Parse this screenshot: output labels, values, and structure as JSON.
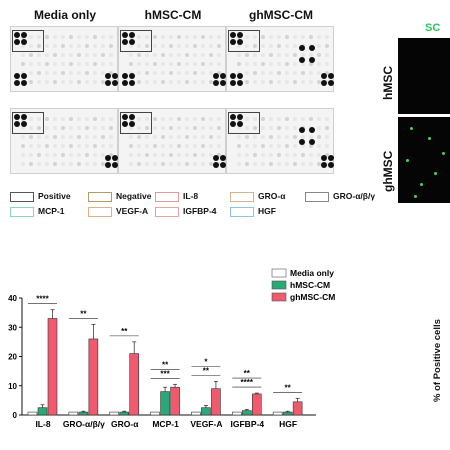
{
  "array": {
    "columns": [
      "Media only",
      "hMSC-CM",
      "ghMSC-CM"
    ],
    "legend": [
      {
        "label": "Positive",
        "color": "#555555"
      },
      {
        "label": "Negative",
        "color": "#b89a6a"
      },
      {
        "label": "IL-8",
        "color": "#e39a9a"
      },
      {
        "label": "GRO-α",
        "color": "#d7b38e"
      },
      {
        "label": "GRO-α/β/γ",
        "color": "#888888"
      },
      {
        "label": "MCP-1",
        "color": "#8fd0c0"
      },
      {
        "label": "VEGF-A",
        "color": "#d8b48a"
      },
      {
        "label": "IGFBP-4",
        "color": "#e2a4a4"
      },
      {
        "label": "HGF",
        "color": "#8cc7d8"
      }
    ]
  },
  "fluorescence": {
    "stain_label": "SC",
    "rows": [
      "hMSC",
      "ghMSC"
    ]
  },
  "right_axis_label": "% of Positive cells",
  "chart_data": {
    "type": "bar",
    "categories": [
      "IL-8",
      "GRO-α/β/γ",
      "GRO-α",
      "MCP-1",
      "VEGF-A",
      "IGFBP-4",
      "HGF"
    ],
    "series": [
      {
        "name": "Media only",
        "values": [
          1,
          1,
          1,
          1,
          1,
          1,
          1
        ],
        "color": "#ffffff"
      },
      {
        "name": "hMSC-CM",
        "values": [
          2.5,
          1,
          1,
          8,
          2.5,
          1.5,
          1
        ],
        "color": "#2aa876"
      },
      {
        "name": "ghMSC-CM",
        "values": [
          33,
          26,
          21,
          9.5,
          9,
          7.2,
          4.5
        ],
        "color": "#f05a6e"
      }
    ],
    "errors": [
      [
        0,
        0,
        0,
        0,
        0,
        0,
        0
      ],
      [
        1,
        0.3,
        0.3,
        1.5,
        0.8,
        0.4,
        0.3
      ],
      [
        3,
        5,
        4,
        1.0,
        2.5,
        0.3,
        1.2
      ]
    ],
    "significance": [
      {
        "category": "IL-8",
        "labels": [
          "****"
        ]
      },
      {
        "category": "GRO-α/β/γ",
        "labels": [
          "**"
        ]
      },
      {
        "category": "GRO-α",
        "labels": [
          "**"
        ]
      },
      {
        "category": "MCP-1",
        "labels": [
          "***",
          "**"
        ]
      },
      {
        "category": "VEGF-A",
        "labels": [
          "**",
          "*"
        ]
      },
      {
        "category": "IGFBP-4",
        "labels": [
          "****",
          "**"
        ]
      },
      {
        "category": "HGF",
        "labels": [
          "**"
        ]
      }
    ],
    "ylim": [
      0,
      40
    ],
    "yticks": [
      "0",
      "10",
      "20",
      "30",
      "40"
    ],
    "legend_position": "top-right",
    "xlabel": "",
    "ylabel": ""
  }
}
